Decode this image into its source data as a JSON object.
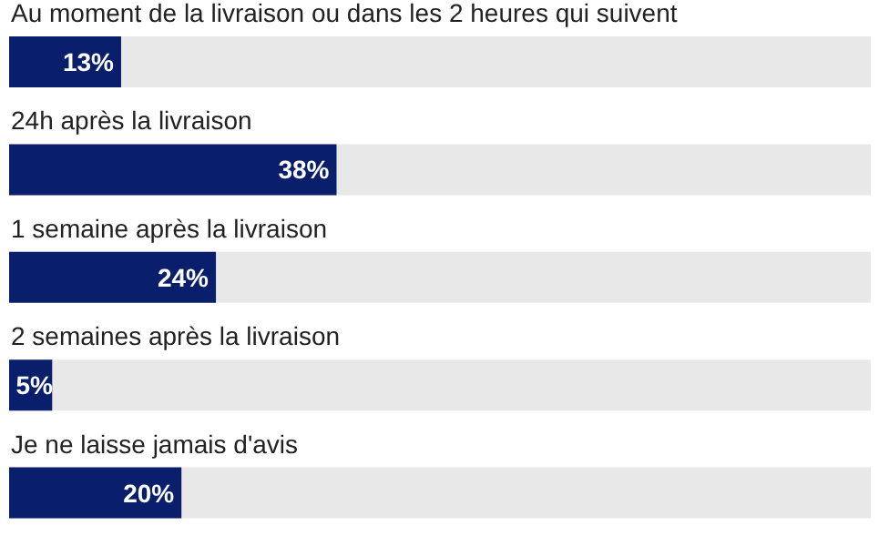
{
  "chart_data": {
    "type": "bar",
    "orientation": "horizontal",
    "categories": [
      "Au moment de la livraison ou dans les 2 heures qui suivent",
      "24h après la livraison",
      "1 semaine après la livraison",
      "2 semaines après la livraison",
      "Je ne laisse jamais d'avis"
    ],
    "values": [
      13,
      38,
      24,
      5,
      20
    ],
    "value_labels": [
      "13%",
      "38%",
      "24%",
      "5%",
      "20%"
    ],
    "color": "#0a1f6b",
    "xlim": [
      0,
      100
    ],
    "tick_labels": false
  }
}
